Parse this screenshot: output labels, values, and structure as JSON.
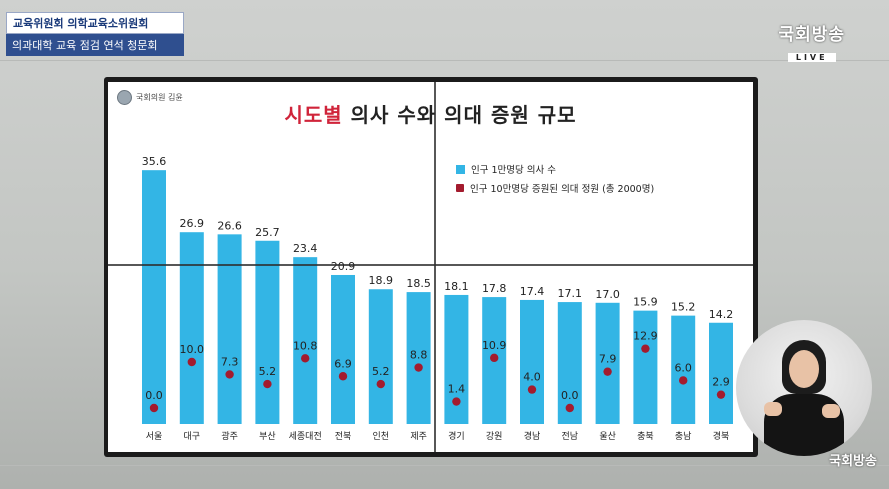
{
  "caption": {
    "line1": "교육위원회 의학교육소위원회",
    "line2": "의과대학 교육 점검 연석 청문회"
  },
  "broadcaster": {
    "name": "국회방송",
    "live": "LIVE"
  },
  "watermark": "국회방송",
  "slide": {
    "logo_text": "국회의원 김윤",
    "title_highlight": "시도별",
    "title_rest": " 의사 수와 의대 증원 규모"
  },
  "colors": {
    "bar": "#33b5e5",
    "dot": "#a31b2e",
    "title_highlight": "#d0243a"
  },
  "chart_data": {
    "type": "bar",
    "categories": [
      "서울",
      "대구",
      "광주",
      "부산",
      "세종대전",
      "전북",
      "인천",
      "제주",
      "경기",
      "강원",
      "경남",
      "전남",
      "울산",
      "충북",
      "충남",
      "경북"
    ],
    "series": [
      {
        "name": "인구 1만명당 의사 수",
        "type": "bar",
        "values": [
          35.6,
          26.9,
          26.6,
          25.7,
          23.4,
          20.9,
          18.9,
          18.5,
          18.1,
          17.8,
          17.4,
          17.1,
          17.0,
          15.9,
          15.2,
          14.2
        ]
      },
      {
        "name": "인구 10만명당 증원된 의대 정원 (총 2000명)",
        "type": "dot",
        "values": [
          0.0,
          10.0,
          7.3,
          5.2,
          10.8,
          6.9,
          5.2,
          8.8,
          1.4,
          10.9,
          4.0,
          0.0,
          7.9,
          12.9,
          6.0,
          2.9
        ]
      }
    ],
    "bar_labels": [
      "35.6",
      "26.9",
      "26.6",
      "25.7",
      "23.4",
      "20.9",
      "18.9",
      "18.5",
      "18.1",
      "17.8",
      "17.4",
      "17.1",
      "17.0",
      "15.9",
      "15.2",
      "14.2"
    ],
    "dot_labels": [
      "0.0",
      "10.0",
      "7.3",
      "5.2",
      "10.8",
      "6.9",
      "5.2",
      "8.8",
      "1.4",
      "10.9",
      "4.0",
      "0.0",
      "7.9",
      "12.9",
      "6.0",
      "2.9"
    ],
    "ylim": [
      0,
      40
    ],
    "grid": false,
    "legend_position": "top-right"
  }
}
